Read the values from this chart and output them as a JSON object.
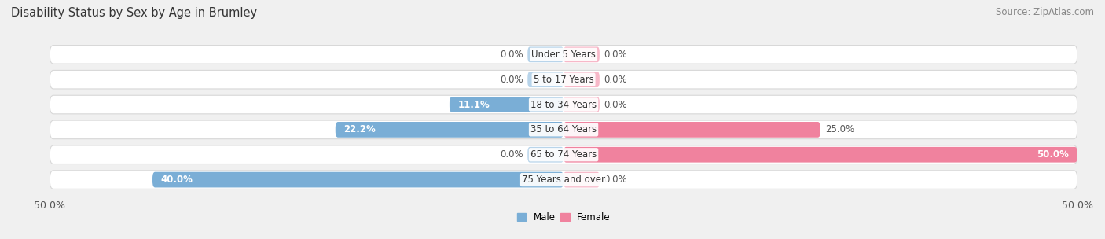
{
  "title": "Disability Status by Sex by Age in Brumley",
  "source": "Source: ZipAtlas.com",
  "categories": [
    "Under 5 Years",
    "5 to 17 Years",
    "18 to 34 Years",
    "35 to 64 Years",
    "65 to 74 Years",
    "75 Years and over"
  ],
  "male_values": [
    0.0,
    0.0,
    11.1,
    22.2,
    0.0,
    40.0
  ],
  "female_values": [
    0.0,
    0.0,
    0.0,
    25.0,
    50.0,
    0.0
  ],
  "male_color": "#7aaed6",
  "male_light_color": "#b8d4ea",
  "female_color": "#f0829e",
  "female_light_color": "#f7b8c8",
  "male_label": "Male",
  "female_label": "Female",
  "xlim": 50.0,
  "stub_size": 3.5,
  "background_color": "#f0f0f0",
  "bar_bg_color": "#ffffff",
  "bar_border_color": "#d8d8d8",
  "title_fontsize": 10.5,
  "source_fontsize": 8.5,
  "tick_fontsize": 9,
  "label_fontsize": 8.5,
  "bar_height": 0.62
}
